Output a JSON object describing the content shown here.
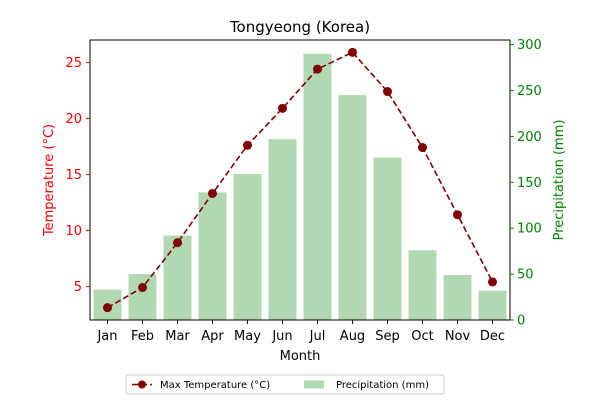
{
  "chart_data": {
    "type": "bar+line",
    "title": "Tongyeong (Korea)",
    "xlabel": "Month",
    "ylabel_left": "Temperature (°C)",
    "ylabel_right": "Precipitation (mm)",
    "categories": [
      "Jan",
      "Feb",
      "Mar",
      "Apr",
      "May",
      "Jun",
      "Jul",
      "Aug",
      "Sep",
      "Oct",
      "Nov",
      "Dec"
    ],
    "ylim_left": [
      2,
      27
    ],
    "ylim_right": [
      0,
      305
    ],
    "yticks_left": [
      5,
      10,
      15,
      20,
      25
    ],
    "yticks_right": [
      0,
      50,
      100,
      150,
      200,
      250,
      300
    ],
    "series": [
      {
        "name": "Max Temperature (°C)",
        "type": "line",
        "axis": "left",
        "values": [
          3.1,
          4.9,
          8.9,
          13.3,
          17.6,
          20.9,
          24.4,
          25.9,
          22.4,
          17.4,
          11.4,
          5.4
        ]
      },
      {
        "name": "Precipitation (mm)",
        "type": "bar",
        "axis": "right",
        "values": [
          33,
          50,
          92,
          139,
          159,
          197,
          290,
          245,
          177,
          76,
          49,
          32
        ]
      }
    ],
    "legend_position": "bottom-center",
    "grid": false,
    "colors": {
      "line": "#800000",
      "bar": "#b2d8b2",
      "left_axis": "#ff0000",
      "right_axis": "#008000"
    }
  }
}
